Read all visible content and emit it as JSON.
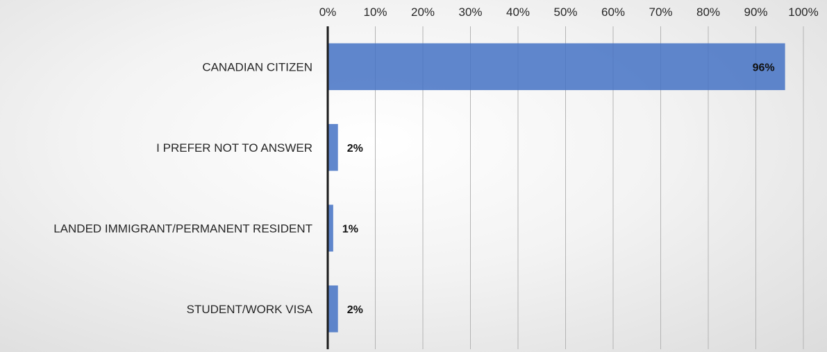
{
  "chart_data": {
    "type": "bar",
    "orientation": "horizontal",
    "title": "",
    "xlabel": "",
    "ylabel": "",
    "categories": [
      "CANADIAN CITIZEN",
      "I PREFER NOT TO ANSWER",
      "LANDED IMMIGRANT/PERMANENT RESIDENT",
      "STUDENT/WORK VISA"
    ],
    "values": [
      96,
      2,
      1,
      2
    ],
    "data_labels": [
      "96%",
      "2%",
      "1%",
      "2%"
    ],
    "xlim": [
      0,
      100
    ],
    "x_ticks": [
      "0%",
      "10%",
      "20%",
      "30%",
      "40%",
      "50%",
      "60%",
      "70%",
      "80%",
      "90%",
      "100%"
    ],
    "x_axis_position": "top",
    "grid": "vertical",
    "legend": "none",
    "bar_color": "#4472c4",
    "gridline_color": "#b4b4b4",
    "axis_color": "#1a1a1a"
  }
}
